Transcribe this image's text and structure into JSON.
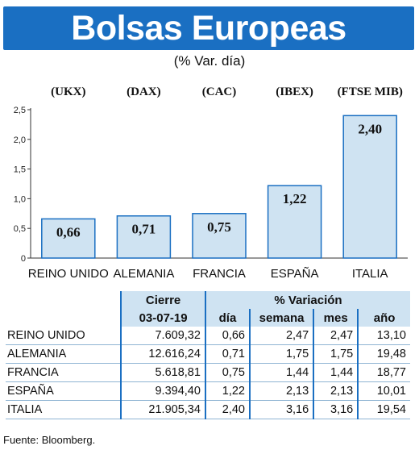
{
  "title": "Bolsas Europeas",
  "subtitle": "(% Var. día)",
  "chart_data": {
    "type": "bar",
    "categories": [
      "REINO UNIDO",
      "ALEMANIA",
      "FRANCIA",
      "ESPAÑA",
      "ITALIA"
    ],
    "indices": [
      "(UKX)",
      "(DAX)",
      "(CAC)",
      "(IBEX)",
      "(FTSE MIB)"
    ],
    "values": [
      0.66,
      0.71,
      0.75,
      1.22,
      2.4
    ],
    "value_labels": [
      "0,66",
      "0,71",
      "0,75",
      "1,22",
      "2,40"
    ],
    "yticks": [
      0,
      0.5,
      1.0,
      1.5,
      2.0,
      2.5
    ],
    "ytick_labels": [
      "0",
      "0,5",
      "1,0",
      "1,5",
      "2,0",
      "2,5"
    ],
    "ylim": [
      0,
      2.5
    ],
    "bar_color": "#cfe3f2",
    "bar_edge_color": "#1a6fc2",
    "accent_color": "#1a6fc2"
  },
  "table": {
    "header_cierre": "Cierre",
    "header_variacion": "% Variación",
    "header_date": "03-07-19",
    "header_dia": "día",
    "header_semana": "semana",
    "header_mes": "mes",
    "header_ano": "año",
    "rows": [
      {
        "country": "REINO UNIDO",
        "cierre": "7.609,32",
        "dia": "0,66",
        "semana": "2,47",
        "mes": "2,47",
        "ano": "13,10"
      },
      {
        "country": "ALEMANIA",
        "cierre": "12.616,24",
        "dia": "0,71",
        "semana": "1,75",
        "mes": "1,75",
        "ano": "19,48"
      },
      {
        "country": "FRANCIA",
        "cierre": "5.618,81",
        "dia": "0,75",
        "semana": "1,44",
        "mes": "1,44",
        "ano": "18,77"
      },
      {
        "country": "ESPAÑA",
        "cierre": "9.394,40",
        "dia": "1,22",
        "semana": "2,13",
        "mes": "2,13",
        "ano": "10,01"
      },
      {
        "country": "ITALIA",
        "cierre": "21.905,34",
        "dia": "2,40",
        "semana": "3,16",
        "mes": "3,16",
        "ano": "19,54"
      }
    ]
  },
  "source": "Fuente: Bloomberg."
}
